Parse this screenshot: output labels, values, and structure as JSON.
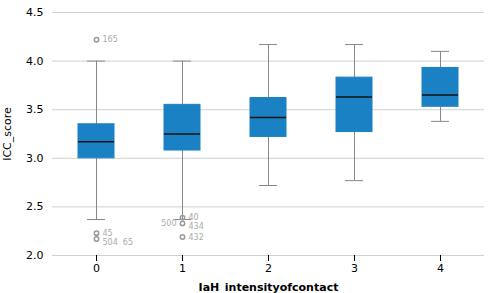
{
  "chart_data": {
    "type": "box",
    "xlabel": "IaH_intensityofcontact",
    "ylabel": "ICC_score",
    "categories": [
      0,
      1,
      2,
      3,
      4
    ],
    "boxes": [
      {
        "whislo": 2.37,
        "q1": 3.0,
        "med": 3.17,
        "q3": 3.35,
        "whishi": 4.0,
        "fliers": [
          {
            "value": 2.17,
            "labels": [
              "504  65"
            ]
          },
          {
            "value": 2.23,
            "labels": [
              "45"
            ]
          },
          {
            "value": 4.22,
            "labels": [
              "165"
            ]
          }
        ]
      },
      {
        "whislo": 2.37,
        "q1": 3.08,
        "med": 3.25,
        "q3": 3.55,
        "whishi": 4.0,
        "fliers": [
          {
            "value": 2.33,
            "labels": [
              "500",
              "434"
            ]
          },
          {
            "value": 2.19,
            "labels": [
              "432"
            ]
          },
          {
            "value": 2.39,
            "labels": [
              "40"
            ]
          }
        ]
      },
      {
        "whislo": 2.72,
        "q1": 3.22,
        "med": 3.42,
        "q3": 3.62,
        "whishi": 4.17,
        "fliers": []
      },
      {
        "whislo": 2.77,
        "q1": 3.27,
        "med": 3.63,
        "q3": 3.83,
        "whishi": 4.17,
        "fliers": []
      },
      {
        "whislo": 3.38,
        "q1": 3.53,
        "med": 3.65,
        "q3": 3.93,
        "whishi": 4.1,
        "fliers": []
      }
    ],
    "ylim": [
      2.0,
      4.5
    ],
    "yticks": [
      {
        "value": 2.0,
        "label": "2.0"
      },
      {
        "value": 2.5,
        "label": "2.5"
      },
      {
        "value": 3.0,
        "label": "3.0"
      },
      {
        "value": 3.5,
        "label": "3.5"
      },
      {
        "value": 4.0,
        "label": "4.0"
      },
      {
        "value": 4.5,
        "label": "4.5"
      }
    ],
    "grid": "y",
    "color": "#1a82c4"
  }
}
